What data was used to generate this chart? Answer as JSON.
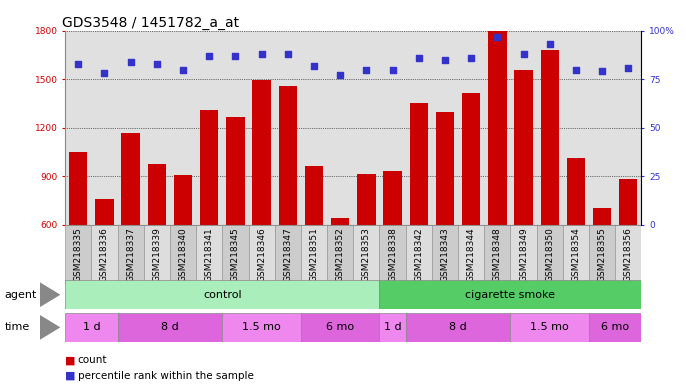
{
  "title": "GDS3548 / 1451782_a_at",
  "samples": [
    "GSM218335",
    "GSM218336",
    "GSM218337",
    "GSM218339",
    "GSM218340",
    "GSM218341",
    "GSM218345",
    "GSM218346",
    "GSM218347",
    "GSM218351",
    "GSM218352",
    "GSM218353",
    "GSM218338",
    "GSM218342",
    "GSM218343",
    "GSM218344",
    "GSM218348",
    "GSM218349",
    "GSM218350",
    "GSM218354",
    "GSM218355",
    "GSM218356"
  ],
  "counts": [
    1050,
    760,
    1170,
    975,
    905,
    1310,
    1265,
    1495,
    1455,
    960,
    640,
    915,
    935,
    1355,
    1300,
    1415,
    1800,
    1560,
    1680,
    1010,
    700,
    880
  ],
  "percentiles": [
    83,
    78,
    84,
    83,
    80,
    87,
    87,
    88,
    88,
    82,
    77,
    80,
    80,
    86,
    85,
    86,
    97,
    88,
    93,
    80,
    79,
    81
  ],
  "bar_color": "#cc0000",
  "dot_color": "#3333cc",
  "ylim_left": [
    600,
    1800
  ],
  "ylim_right": [
    0,
    100
  ],
  "yticks_left": [
    600,
    900,
    1200,
    1500,
    1800
  ],
  "yticks_right": [
    0,
    25,
    50,
    75,
    100
  ],
  "ytick_labels_right": [
    "0",
    "25",
    "50",
    "75",
    "100%"
  ],
  "agent_groups": [
    {
      "label": "control",
      "start": 0,
      "end": 12,
      "color": "#aaeebb"
    },
    {
      "label": "cigarette smoke",
      "start": 12,
      "end": 22,
      "color": "#55cc66"
    }
  ],
  "time_groups": [
    {
      "label": "1 d",
      "start": 0,
      "end": 2,
      "color": "#ee88ee"
    },
    {
      "label": "8 d",
      "start": 2,
      "end": 6,
      "color": "#dd66dd"
    },
    {
      "label": "1.5 mo",
      "start": 6,
      "end": 9,
      "color": "#ee88ee"
    },
    {
      "label": "6 mo",
      "start": 9,
      "end": 12,
      "color": "#dd66dd"
    },
    {
      "label": "1 d",
      "start": 12,
      "end": 13,
      "color": "#ee88ee"
    },
    {
      "label": "8 d",
      "start": 13,
      "end": 17,
      "color": "#dd66dd"
    },
    {
      "label": "1.5 mo",
      "start": 17,
      "end": 20,
      "color": "#ee88ee"
    },
    {
      "label": "6 mo",
      "start": 20,
      "end": 22,
      "color": "#dd66dd"
    }
  ],
  "bg_color": "#ffffff",
  "plot_bg_color": "#e0e0e0",
  "grid_color": "#000000",
  "title_fontsize": 10,
  "tick_fontsize": 6.5,
  "label_fontsize": 8,
  "xtick_bg_even": "#cccccc",
  "xtick_bg_odd": "#dddddd"
}
